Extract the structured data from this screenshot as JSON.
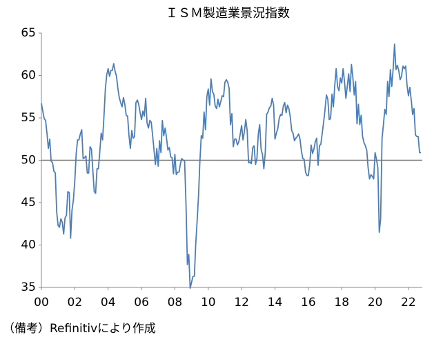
{
  "chart_data": {
    "type": "line",
    "title": "ＩＳＭ製造業景況指数",
    "note": "（備考）Refinitivにより作成",
    "x": [
      2000,
      2000.083,
      2000.167,
      2000.25,
      2000.333,
      2000.417,
      2000.5,
      2000.583,
      2000.667,
      2000.75,
      2000.833,
      2000.917,
      2001,
      2001.083,
      2001.167,
      2001.25,
      2001.333,
      2001.417,
      2001.5,
      2001.583,
      2001.667,
      2001.75,
      2001.833,
      2001.917,
      2002,
      2002.083,
      2002.167,
      2002.25,
      2002.333,
      2002.417,
      2002.5,
      2002.583,
      2002.667,
      2002.75,
      2002.833,
      2002.917,
      2003,
      2003.083,
      2003.167,
      2003.25,
      2003.333,
      2003.417,
      2003.5,
      2003.583,
      2003.667,
      2003.75,
      2003.833,
      2003.917,
      2004,
      2004.083,
      2004.167,
      2004.25,
      2004.333,
      2004.417,
      2004.5,
      2004.583,
      2004.667,
      2004.75,
      2004.833,
      2004.917,
      2005,
      2005.083,
      2005.167,
      2005.25,
      2005.333,
      2005.417,
      2005.5,
      2005.583,
      2005.667,
      2005.75,
      2005.833,
      2005.917,
      2006,
      2006.083,
      2006.167,
      2006.25,
      2006.333,
      2006.417,
      2006.5,
      2006.583,
      2006.667,
      2006.75,
      2006.833,
      2006.917,
      2007,
      2007.083,
      2007.167,
      2007.25,
      2007.333,
      2007.417,
      2007.5,
      2007.583,
      2007.667,
      2007.75,
      2007.833,
      2007.917,
      2008,
      2008.083,
      2008.167,
      2008.25,
      2008.333,
      2008.417,
      2008.5,
      2008.583,
      2008.667,
      2008.75,
      2008.833,
      2008.917,
      2009,
      2009.083,
      2009.167,
      2009.25,
      2009.333,
      2009.417,
      2009.5,
      2009.583,
      2009.667,
      2009.75,
      2009.833,
      2009.917,
      2010,
      2010.083,
      2010.167,
      2010.25,
      2010.333,
      2010.417,
      2010.5,
      2010.583,
      2010.667,
      2010.75,
      2010.833,
      2010.917,
      2011,
      2011.083,
      2011.167,
      2011.25,
      2011.333,
      2011.417,
      2011.5,
      2011.583,
      2011.667,
      2011.75,
      2011.833,
      2011.917,
      2012,
      2012.083,
      2012.167,
      2012.25,
      2012.333,
      2012.417,
      2012.5,
      2012.583,
      2012.667,
      2012.75,
      2012.833,
      2012.917,
      2013,
      2013.083,
      2013.167,
      2013.25,
      2013.333,
      2013.417,
      2013.5,
      2013.583,
      2013.667,
      2013.75,
      2013.833,
      2013.917,
      2014,
      2014.083,
      2014.167,
      2014.25,
      2014.333,
      2014.417,
      2014.5,
      2014.583,
      2014.667,
      2014.75,
      2014.833,
      2014.917,
      2015,
      2015.083,
      2015.167,
      2015.25,
      2015.333,
      2015.417,
      2015.5,
      2015.583,
      2015.667,
      2015.75,
      2015.833,
      2015.917,
      2016,
      2016.083,
      2016.167,
      2016.25,
      2016.333,
      2016.417,
      2016.5,
      2016.583,
      2016.667,
      2016.75,
      2016.833,
      2016.917,
      2017,
      2017.083,
      2017.167,
      2017.25,
      2017.333,
      2017.417,
      2017.5,
      2017.583,
      2017.667,
      2017.75,
      2017.833,
      2017.917,
      2018,
      2018.083,
      2018.167,
      2018.25,
      2018.333,
      2018.417,
      2018.5,
      2018.583,
      2018.667,
      2018.75,
      2018.833,
      2018.917,
      2019,
      2019.083,
      2019.167,
      2019.25,
      2019.333,
      2019.417,
      2019.5,
      2019.583,
      2019.667,
      2019.75,
      2019.833,
      2019.917,
      2020,
      2020.083,
      2020.167,
      2020.25,
      2020.333,
      2020.417,
      2020.5,
      2020.583,
      2020.667,
      2020.75,
      2020.833,
      2020.917,
      2021,
      2021.083,
      2021.167,
      2021.25,
      2021.333,
      2021.417,
      2021.5,
      2021.583,
      2021.667,
      2021.75,
      2021.833,
      2021.917,
      2022,
      2022.083,
      2022.167,
      2022.25,
      2022.333,
      2022.417,
      2022.5,
      2022.583,
      2022.667,
      2022.75
    ],
    "values": [
      56.7,
      55.8,
      54.9,
      54.7,
      53.2,
      51.4,
      52.5,
      49.9,
      49.7,
      48.7,
      48.5,
      43.9,
      42.3,
      42.1,
      43.1,
      42.7,
      41.3,
      43.2,
      43.5,
      46.3,
      46.2,
      40.8,
      44.1,
      45.3,
      47.5,
      50.7,
      52.4,
      52.4,
      53.1,
      53.6,
      50.2,
      50.3,
      50.5,
      48.5,
      48.5,
      51.6,
      51.3,
      48.8,
      46.3,
      46.1,
      49.0,
      49.0,
      51.0,
      53.2,
      52.4,
      55.2,
      58.4,
      60.1,
      60.8,
      59.9,
      60.6,
      60.6,
      61.4,
      60.5,
      59.9,
      58.5,
      57.4,
      56.8,
      56.3,
      57.4,
      56.6,
      55.3,
      55.2,
      52.9,
      51.4,
      53.5,
      52.6,
      52.8,
      56.8,
      57.1,
      56.6,
      55.6,
      54.8,
      55.8,
      55.2,
      57.3,
      54.4,
      53.8,
      54.7,
      54.5,
      52.9,
      51.2,
      49.5,
      51.4,
      49.3,
      52.3,
      50.9,
      54.7,
      52.9,
      53.8,
      52.6,
      51.2,
      51.5,
      50.4,
      50.3,
      48.4,
      50.7,
      48.3,
      48.6,
      48.6,
      49.6,
      50.2,
      50.0,
      49.9,
      44.8,
      37.7,
      38.9,
      34.9,
      35.6,
      36.3,
      36.3,
      40.1,
      42.8,
      45.8,
      49.9,
      52.9,
      52.6,
      55.7,
      53.6,
      57.5,
      58.4,
      56.5,
      59.6,
      58.1,
      57.8,
      56.4,
      56.1,
      57.2,
      56.3,
      56.9,
      57.6,
      57.5,
      59.2,
      59.5,
      59.2,
      58.5,
      54.2,
      55.5,
      51.6,
      52.5,
      52.5,
      51.8,
      52.2,
      53.1,
      54.1,
      52.4,
      53.4,
      54.8,
      53.5,
      49.7,
      49.8,
      49.6,
      51.5,
      51.7,
      49.5,
      50.2,
      53.1,
      54.2,
      51.3,
      50.7,
      49.0,
      50.9,
      55.4,
      55.7,
      56.2,
      56.4,
      57.3,
      56.5,
      52.5,
      53.2,
      53.7,
      54.9,
      55.4,
      55.3,
      56.4,
      56.8,
      55.6,
      56.5,
      56.1,
      55.1,
      53.5,
      53.2,
      52.3,
      52.6,
      52.8,
      53.1,
      52.5,
      51.1,
      50.2,
      50.1,
      48.6,
      48.2,
      48.2,
      49.5,
      51.8,
      50.8,
      51.3,
      52.2,
      52.6,
      49.4,
      51.7,
      51.9,
      53.2,
      54.5,
      56.0,
      57.7,
      57.2,
      54.8,
      54.9,
      57.8,
      56.3,
      58.8,
      60.8,
      58.7,
      58.2,
      59.7,
      59.1,
      60.8,
      59.3,
      57.3,
      58.7,
      60.2,
      58.1,
      61.3,
      59.8,
      57.7,
      59.3,
      54.3,
      56.6,
      54.2,
      55.3,
      52.8,
      52.1,
      51.7,
      51.2,
      49.1,
      47.8,
      48.3,
      48.1,
      47.8,
      50.9,
      50.1,
      49.1,
      41.5,
      43.1,
      52.6,
      54.2,
      56.0,
      55.4,
      59.3,
      57.5,
      60.7,
      58.7,
      60.8,
      63.7,
      60.7,
      61.2,
      60.6,
      59.5,
      59.9,
      61.1,
      60.8,
      61.1,
      58.8,
      57.6,
      58.6,
      57.1,
      55.4,
      56.1,
      53.0,
      52.8,
      52.8,
      50.9,
      50.9
    ],
    "color": "#4a7ebb",
    "reference_line": 50,
    "xlim": [
      2000,
      2022.83
    ],
    "xticks": [
      {
        "value": 2000,
        "label": "00"
      },
      {
        "value": 2002,
        "label": "02"
      },
      {
        "value": 2004,
        "label": "04"
      },
      {
        "value": 2006,
        "label": "06"
      },
      {
        "value": 2008,
        "label": "08"
      },
      {
        "value": 2010,
        "label": "10"
      },
      {
        "value": 2012,
        "label": "12"
      },
      {
        "value": 2014,
        "label": "14"
      },
      {
        "value": 2016,
        "label": "16"
      },
      {
        "value": 2018,
        "label": "18"
      },
      {
        "value": 2020,
        "label": "20"
      },
      {
        "value": 2022,
        "label": "22"
      }
    ],
    "ylim": [
      35,
      65
    ],
    "yticks": [
      35,
      40,
      45,
      50,
      55,
      60,
      65
    ],
    "grid": false
  }
}
